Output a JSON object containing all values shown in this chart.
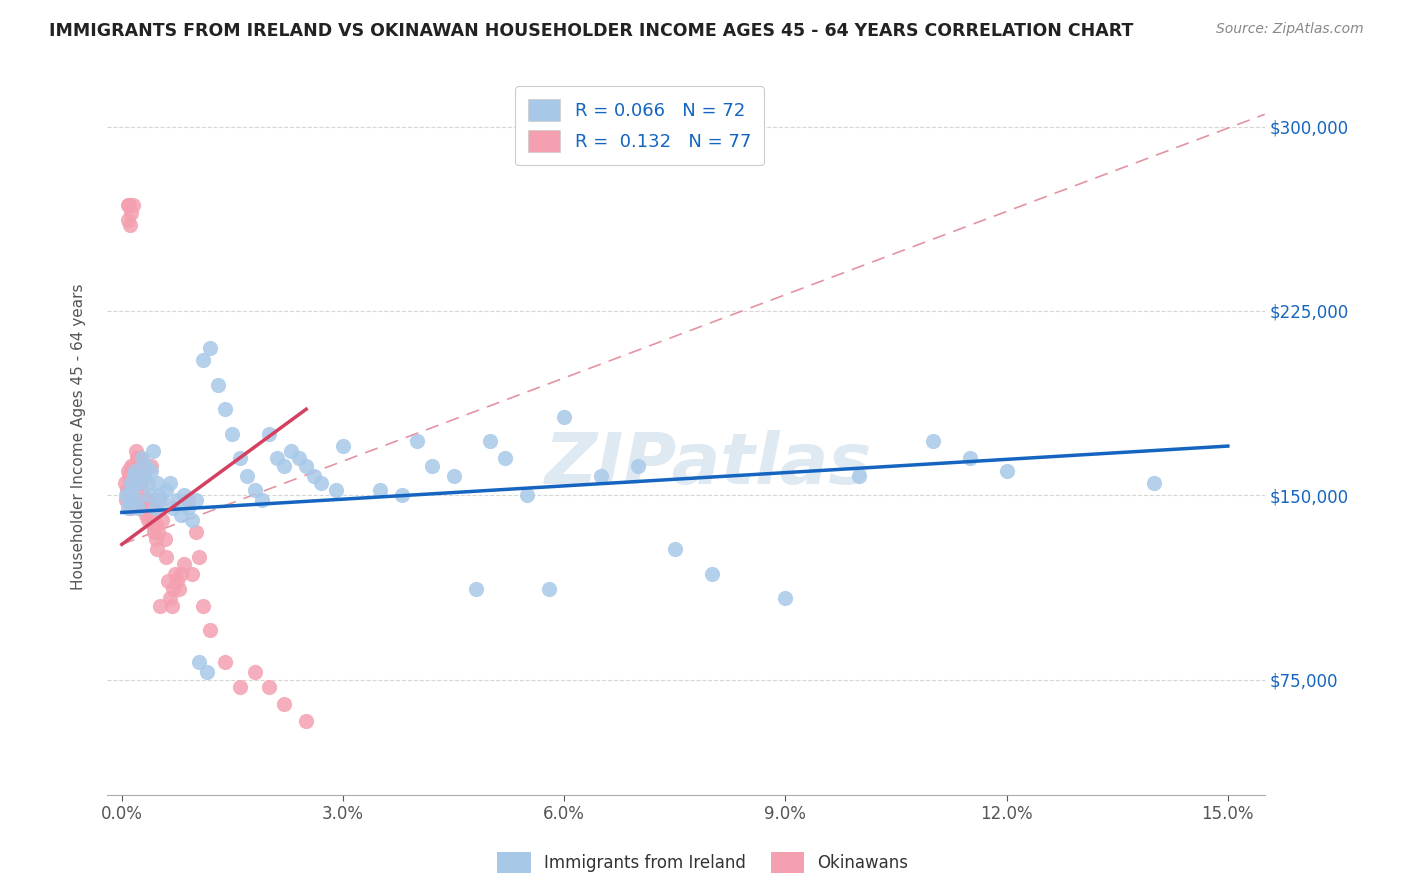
{
  "title": "IMMIGRANTS FROM IRELAND VS OKINAWAN HOUSEHOLDER INCOME AGES 45 - 64 YEARS CORRELATION CHART",
  "source": "Source: ZipAtlas.com",
  "xlabel_vals": [
    0.0,
    3.0,
    6.0,
    9.0,
    12.0,
    15.0
  ],
  "ylabel_vals": [
    75000,
    150000,
    225000,
    300000
  ],
  "ylabel_labels": [
    "$75,000",
    "$150,000",
    "$225,000",
    "$300,000"
  ],
  "xlim": [
    -0.2,
    15.5
  ],
  "ylim": [
    28000,
    320000
  ],
  "watermark": "ZIPatlas",
  "blue_color": "#a8c8e8",
  "pink_color": "#f4a0b0",
  "blue_line_color": "#1565c0",
  "pink_line_color": "#d44060",
  "diag_line_color": "#e08090",
  "ireland_R": 0.066,
  "ireland_N": 72,
  "okinawa_R": 0.132,
  "okinawa_N": 77,
  "ireland_points_x": [
    0.05,
    0.08,
    0.1,
    0.12,
    0.14,
    0.16,
    0.18,
    0.2,
    0.22,
    0.25,
    0.28,
    0.3,
    0.33,
    0.35,
    0.38,
    0.4,
    0.42,
    0.45,
    0.48,
    0.5,
    0.55,
    0.6,
    0.65,
    0.7,
    0.75,
    0.8,
    0.85,
    0.9,
    0.95,
    1.0,
    1.1,
    1.2,
    1.3,
    1.4,
    1.5,
    1.6,
    1.7,
    1.8,
    1.9,
    2.0,
    2.1,
    2.2,
    2.3,
    2.4,
    2.5,
    2.6,
    2.7,
    2.9,
    3.0,
    3.5,
    3.8,
    4.0,
    4.2,
    4.5,
    4.8,
    5.0,
    5.2,
    5.5,
    5.8,
    6.0,
    6.5,
    7.0,
    7.5,
    8.0,
    9.0,
    10.0,
    11.0,
    11.5,
    12.0,
    14.0,
    1.05,
    1.15
  ],
  "ireland_points_y": [
    150000,
    145000,
    148000,
    155000,
    152000,
    158000,
    160000,
    148000,
    145000,
    155000,
    165000,
    158000,
    162000,
    155000,
    150000,
    160000,
    168000,
    145000,
    155000,
    150000,
    148000,
    152000,
    155000,
    145000,
    148000,
    142000,
    150000,
    145000,
    140000,
    148000,
    205000,
    210000,
    195000,
    185000,
    175000,
    165000,
    158000,
    152000,
    148000,
    175000,
    165000,
    162000,
    168000,
    165000,
    162000,
    158000,
    155000,
    152000,
    170000,
    152000,
    150000,
    172000,
    162000,
    158000,
    112000,
    172000,
    165000,
    150000,
    112000,
    182000,
    158000,
    162000,
    128000,
    118000,
    108000,
    158000,
    172000,
    165000,
    160000,
    155000,
    82000,
    78000
  ],
  "okinawa_points_x": [
    0.04,
    0.06,
    0.07,
    0.08,
    0.09,
    0.1,
    0.11,
    0.12,
    0.13,
    0.14,
    0.15,
    0.16,
    0.17,
    0.18,
    0.19,
    0.2,
    0.21,
    0.22,
    0.23,
    0.24,
    0.25,
    0.26,
    0.27,
    0.28,
    0.29,
    0.3,
    0.31,
    0.32,
    0.33,
    0.34,
    0.35,
    0.36,
    0.37,
    0.38,
    0.39,
    0.4,
    0.41,
    0.42,
    0.43,
    0.44,
    0.45,
    0.46,
    0.47,
    0.48,
    0.49,
    0.5,
    0.52,
    0.55,
    0.58,
    0.6,
    0.63,
    0.65,
    0.68,
    0.7,
    0.72,
    0.75,
    0.78,
    0.8,
    0.85,
    0.9,
    0.95,
    1.0,
    1.05,
    1.1,
    1.2,
    1.4,
    1.6,
    1.8,
    2.0,
    2.2,
    2.5,
    0.08,
    0.1,
    0.12,
    0.15,
    0.2,
    0.25
  ],
  "okinawa_points_y": [
    155000,
    148000,
    152000,
    268000,
    262000,
    268000,
    260000,
    265000,
    145000,
    160000,
    268000,
    160000,
    162000,
    155000,
    168000,
    162000,
    158000,
    165000,
    148000,
    155000,
    162000,
    155000,
    152000,
    148000,
    145000,
    158000,
    145000,
    148000,
    142000,
    148000,
    145000,
    140000,
    142000,
    148000,
    140000,
    162000,
    145000,
    138000,
    142000,
    135000,
    145000,
    138000,
    132000,
    128000,
    135000,
    148000,
    105000,
    140000,
    132000,
    125000,
    115000,
    108000,
    105000,
    112000,
    118000,
    115000,
    112000,
    118000,
    122000,
    148000,
    118000,
    135000,
    125000,
    105000,
    95000,
    82000,
    72000,
    78000,
    72000,
    65000,
    58000,
    160000,
    158000,
    162000,
    162000,
    165000,
    165000
  ]
}
